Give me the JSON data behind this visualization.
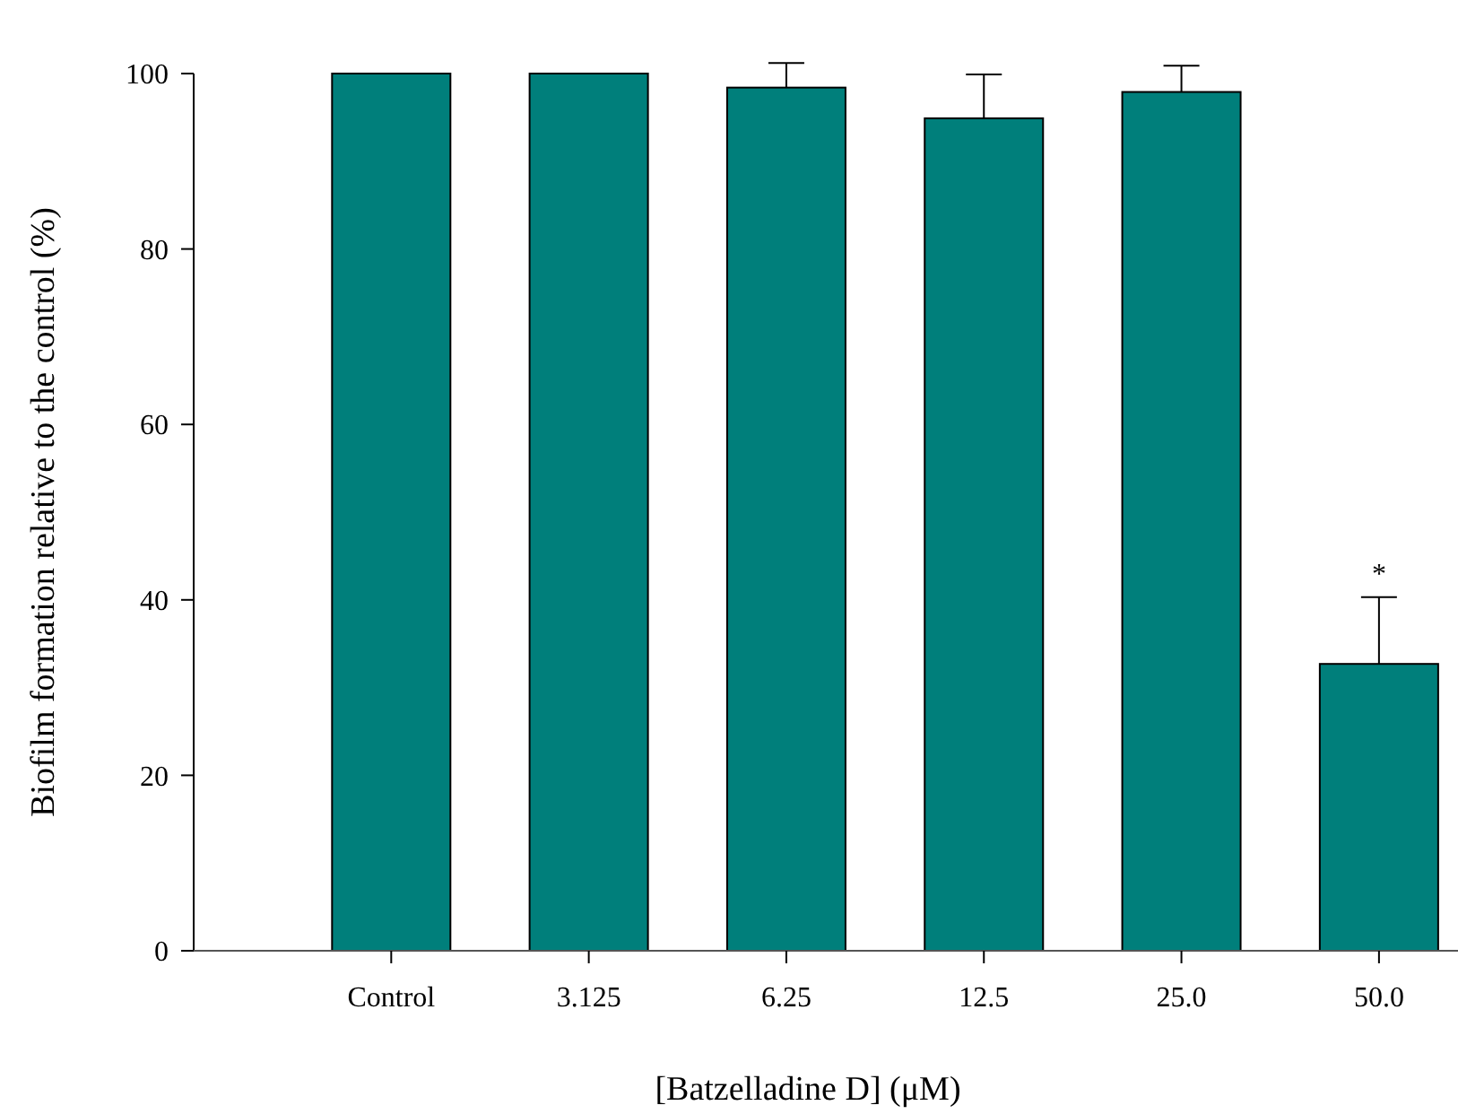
{
  "chart_data": {
    "type": "bar",
    "xlabel": "[Batzelladine D] (μM)",
    "ylabel": "Biofilm formation relative to the control (%)",
    "categories": [
      "Control",
      "3.125",
      "6.25",
      "12.5",
      "25.0",
      "50.0"
    ],
    "values": [
      100,
      100,
      98.4,
      94.9,
      97.9,
      32.7
    ],
    "errors": [
      null,
      null,
      2.8,
      5.0,
      3.0,
      7.6
    ],
    "color": "#007f7b",
    "ylim": [
      0,
      100
    ],
    "yticks": [
      0,
      20,
      40,
      60,
      80,
      100
    ],
    "annotations": [
      {
        "text": "*",
        "x": "50.0",
        "y": 40.3
      }
    ]
  }
}
